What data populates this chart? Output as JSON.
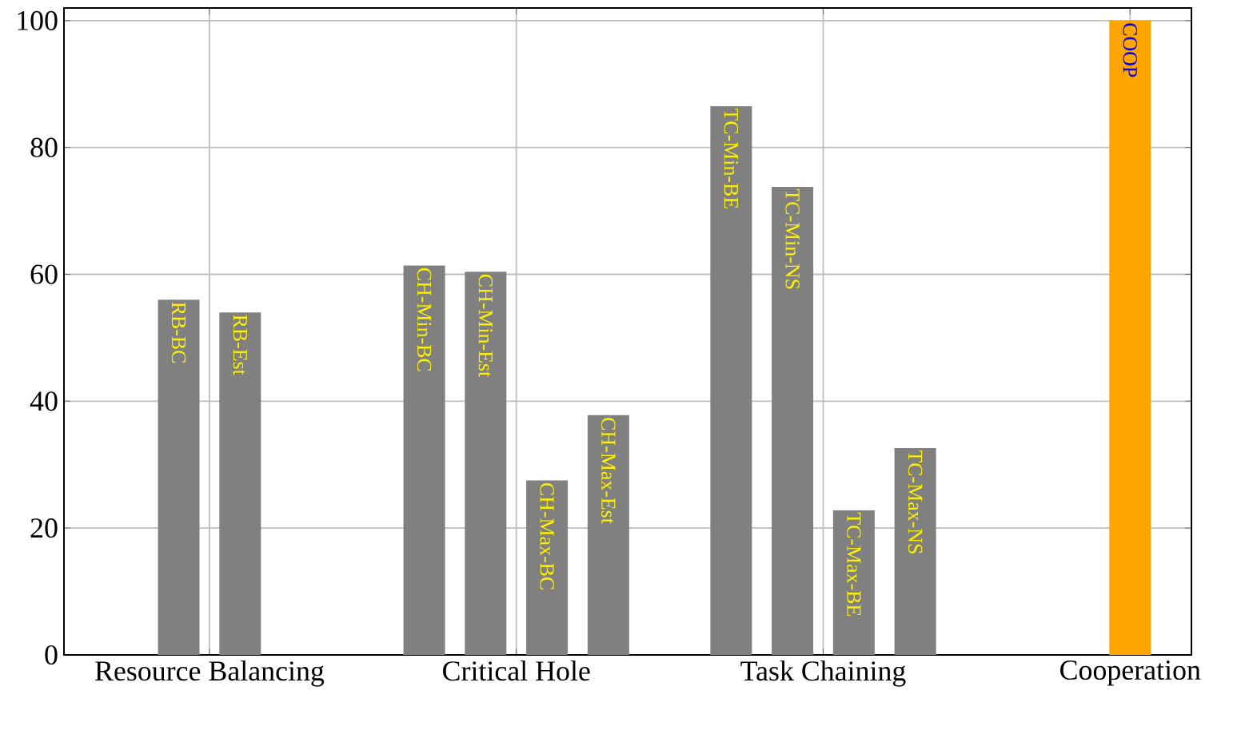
{
  "chart_data": {
    "type": "bar",
    "categories": [
      "Resource Balancing",
      "Critical Hole",
      "Task Chaining",
      "Cooperation"
    ],
    "series": [
      {
        "name": "RB-BC",
        "color": "#808080",
        "values": [
          56,
          null,
          null,
          null
        ]
      },
      {
        "name": "RB-Est",
        "color": "#808080",
        "values": [
          54,
          null,
          null,
          null
        ]
      },
      {
        "name": "CH-Min-BC",
        "color": "#808080",
        "values": [
          null,
          61.4,
          null,
          null
        ]
      },
      {
        "name": "CH-Min-Est",
        "color": "#808080",
        "values": [
          null,
          60.4,
          null,
          null
        ]
      },
      {
        "name": "CH-Max-BC",
        "color": "#808080",
        "values": [
          null,
          27.5,
          null,
          null
        ]
      },
      {
        "name": "CH-Max-Est",
        "color": "#808080",
        "values": [
          null,
          37.8,
          null,
          null
        ]
      },
      {
        "name": "TC-Min-BE",
        "color": "#808080",
        "values": [
          null,
          null,
          86.5,
          null
        ]
      },
      {
        "name": "TC-Min-NS",
        "color": "#808080",
        "values": [
          null,
          null,
          73.8,
          null
        ]
      },
      {
        "name": "TC-Max-BE",
        "color": "#808080",
        "values": [
          null,
          null,
          22.8,
          null
        ]
      },
      {
        "name": "TC-Max-NS",
        "color": "#808080",
        "values": [
          null,
          null,
          32.6,
          null
        ]
      },
      {
        "name": "COOP",
        "color": "#ffa500",
        "values": [
          null,
          null,
          null,
          100
        ]
      }
    ],
    "ylim": [
      0,
      102
    ],
    "yticks": [
      0,
      20,
      40,
      60,
      80,
      100
    ],
    "grid": true
  }
}
